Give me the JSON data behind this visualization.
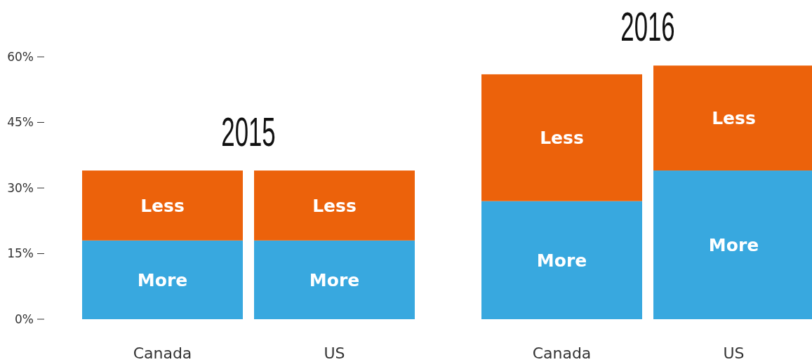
{
  "chart_data": {
    "type": "bar",
    "stacked": true,
    "categories": [
      "Canada",
      "US",
      "Canada",
      "US"
    ],
    "series": [
      {
        "name": "More",
        "color": "#38a8df",
        "values": [
          18,
          18,
          27,
          34
        ]
      },
      {
        "name": "Less",
        "color": "#ec620b",
        "values": [
          16,
          16,
          29,
          24
        ]
      }
    ],
    "ylim": [
      0,
      60
    ],
    "yticks": [
      {
        "value": 0,
        "label": "0%"
      },
      {
        "value": 15,
        "label": "15%"
      },
      {
        "value": 30,
        "label": "30%"
      },
      {
        "value": 45,
        "label": "45%"
      },
      {
        "value": 60,
        "label": "60%"
      }
    ],
    "annotations": [
      "2015",
      "2016"
    ]
  }
}
